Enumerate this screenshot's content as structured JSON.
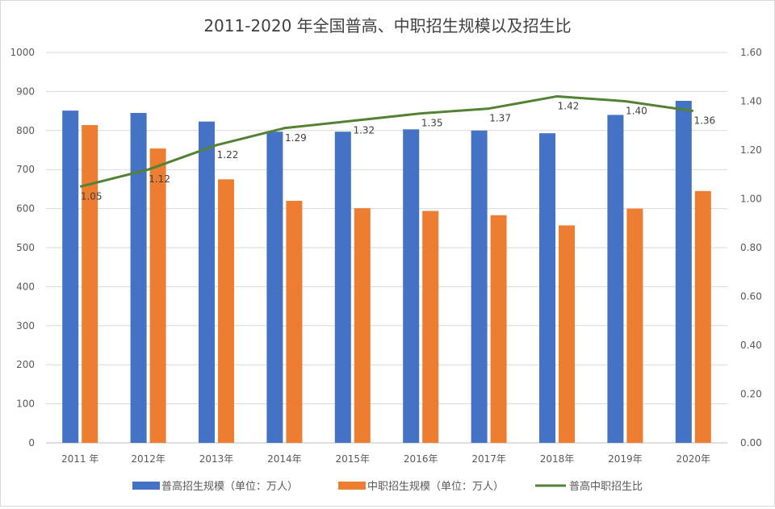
{
  "chart_data": {
    "type": "bar",
    "title": "2011-2020 年全国普高、中职招生规模以及招生比",
    "categories": [
      "2011 年",
      "2012年",
      "2013年",
      "2014年",
      "2015年",
      "2016年",
      "2017年",
      "2018年",
      "2019年",
      "2020年"
    ],
    "series": [
      {
        "name": "普高招生规模（单位：万人）",
        "type": "bar",
        "axis": "left",
        "color": "#4472C4",
        "values": [
          851,
          845,
          823,
          797,
          797,
          803,
          800,
          793,
          840,
          876
        ]
      },
      {
        "name": "中职招生规模（单位：万人）",
        "type": "bar",
        "axis": "left",
        "color": "#ED7D31",
        "values": [
          814,
          754,
          675,
          620,
          601,
          594,
          583,
          557,
          600,
          645
        ]
      },
      {
        "name": "普高中职招生比",
        "type": "line",
        "axis": "right",
        "color": "#548235",
        "values": [
          1.05,
          1.12,
          1.22,
          1.29,
          1.32,
          1.35,
          1.37,
          1.42,
          1.4,
          1.36
        ],
        "data_labels": [
          "1.05",
          "1.12",
          "1.22",
          "1.29",
          "1.32",
          "1.35",
          "1.37",
          "1.42",
          "1.40",
          "1.36"
        ]
      }
    ],
    "y_left": {
      "ylim": [
        0,
        1000
      ],
      "ticks": [
        "0",
        "100",
        "200",
        "300",
        "400",
        "500",
        "600",
        "700",
        "800",
        "900",
        "1000"
      ]
    },
    "y_right": {
      "ylim": [
        0,
        1.6
      ],
      "ticks": [
        "0.00",
        "0.20",
        "0.40",
        "0.60",
        "0.80",
        "1.00",
        "1.20",
        "1.40",
        "1.60"
      ]
    },
    "grid": true,
    "legend": "bottom"
  }
}
